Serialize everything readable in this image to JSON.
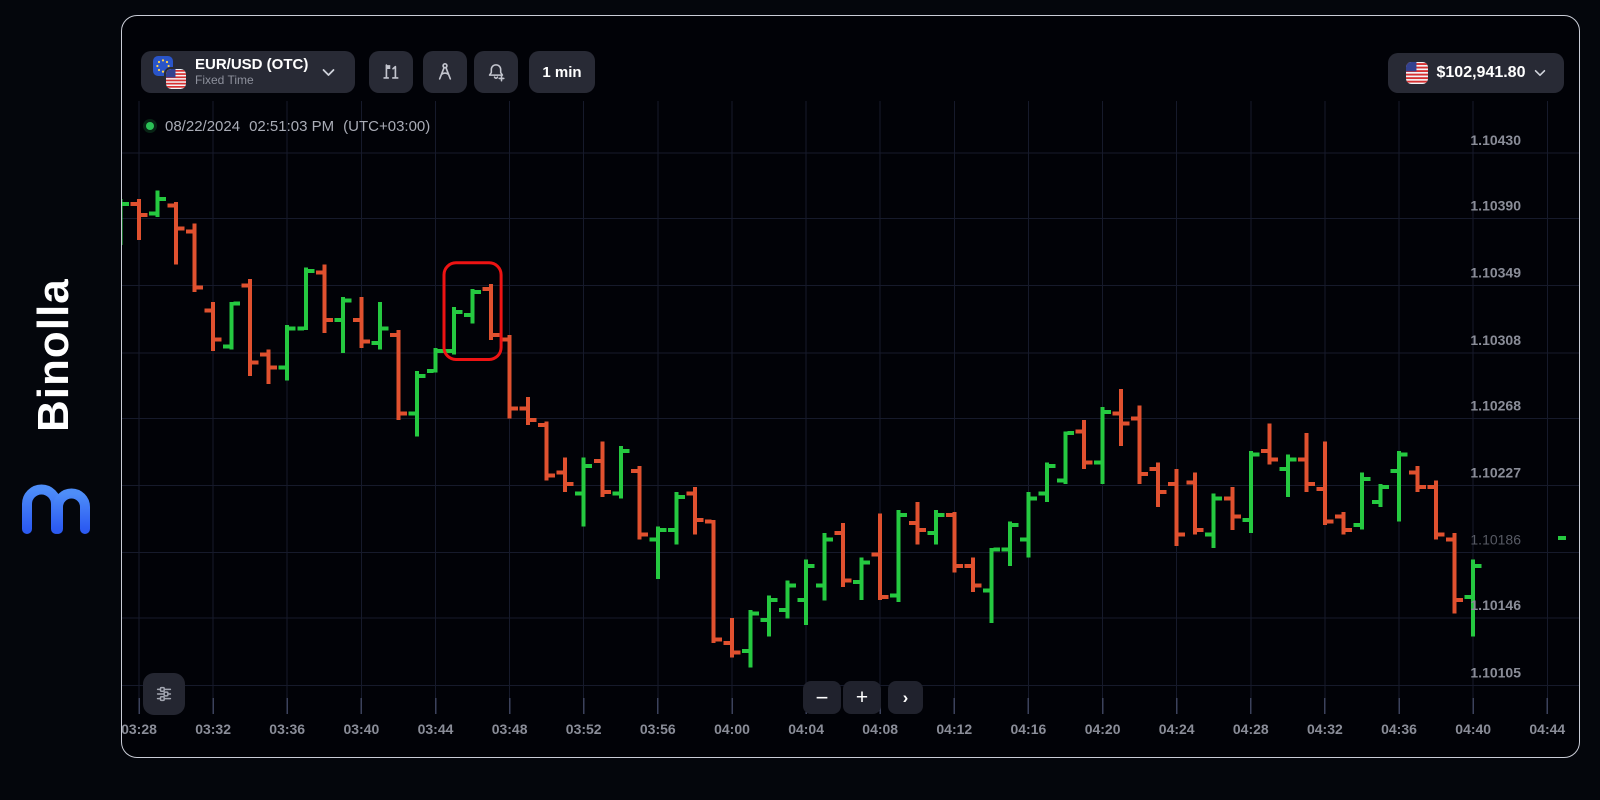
{
  "app": {
    "brand": "Binolla"
  },
  "toolbar": {
    "asset": {
      "name": "EUR/USD (OTC)",
      "type": "Fixed Time",
      "flags": [
        "eu-flag",
        "us-flag"
      ]
    },
    "icons": [
      "trades-icon",
      "drawing-tools-icon",
      "alerts-icon"
    ],
    "timeframe": "1 min",
    "balance": {
      "amount": "$102,941.80",
      "flag": "us-flag"
    }
  },
  "chart": {
    "timestamp": {
      "date": "08/22/2024",
      "time": "02:51:03 PM",
      "tz": "(UTC+03:00)"
    },
    "settings_icon": "sliders-icon"
  },
  "controls": {
    "zoom_out": "−",
    "zoom_in": "+",
    "pan_right": "›"
  },
  "chart_data": {
    "type": "ohlc-bar",
    "symbol": "EUR/USD (OTC)",
    "interval": "1 min",
    "grid": true,
    "y_axis_side": "right",
    "x_ticks": [
      "03:28",
      "03:32",
      "03:36",
      "03:40",
      "03:44",
      "03:48",
      "03:52",
      "03:56",
      "04:00",
      "04:04",
      "04:08",
      "04:12",
      "04:16",
      "04:20",
      "04:24",
      "04:28",
      "04:32",
      "04:36",
      "04:40",
      "04:44"
    ],
    "y_ticks": [
      {
        "label": "1.10430",
        "value": 1.1043,
        "dim": false
      },
      {
        "label": "1.10390",
        "value": 1.1039,
        "dim": false
      },
      {
        "label": "1.10349",
        "value": 1.10349,
        "dim": false
      },
      {
        "label": "1.10308",
        "value": 1.10308,
        "dim": false
      },
      {
        "label": "1.10268",
        "value": 1.10268,
        "dim": false
      },
      {
        "label": "1.10227",
        "value": 1.10227,
        "dim": false
      },
      {
        "label": "1.10186",
        "value": 1.10186,
        "dim": true
      },
      {
        "label": "1.10146",
        "value": 1.10146,
        "dim": false
      },
      {
        "label": "1.10105",
        "value": 1.10105,
        "dim": false
      }
    ],
    "bar_fields": [
      "time",
      "open",
      "high",
      "low",
      "close"
    ],
    "bars": [
      [
        "03:27",
        1.10377,
        1.10402,
        1.10374,
        1.10399
      ],
      [
        "03:28",
        1.10399,
        1.10402,
        1.10377,
        1.10392
      ],
      [
        "03:29",
        1.10393,
        1.10407,
        1.10391,
        1.10402
      ],
      [
        "03:30",
        1.10398,
        1.104,
        1.10362,
        1.10384
      ],
      [
        "03:31",
        1.10382,
        1.10387,
        1.10345,
        1.10348
      ],
      [
        "03:32",
        1.10334,
        1.10339,
        1.10309,
        1.10316
      ],
      [
        "03:33",
        1.10312,
        1.10339,
        1.1031,
        1.10338
      ],
      [
        "03:34",
        1.10349,
        1.10353,
        1.10294,
        1.10302
      ],
      [
        "03:35",
        1.10307,
        1.1031,
        1.10289,
        1.10299
      ],
      [
        "03:36",
        1.10299,
        1.10325,
        1.10291,
        1.10323
      ],
      [
        "03:37",
        1.10323,
        1.1036,
        1.10322,
        1.10358
      ],
      [
        "03:38",
        1.10357,
        1.10362,
        1.1032,
        1.10328
      ],
      [
        "03:39",
        1.10328,
        1.10342,
        1.10308,
        1.1034
      ],
      [
        "03:40",
        1.10328,
        1.10342,
        1.10311,
        1.10315
      ],
      [
        "03:41",
        1.10314,
        1.10339,
        1.1031,
        1.10323
      ],
      [
        "03:42",
        1.10319,
        1.10322,
        1.10267,
        1.10271
      ],
      [
        "03:43",
        1.10271,
        1.10297,
        1.10257,
        1.10294
      ],
      [
        "03:44",
        1.10297,
        1.10311,
        1.10296,
        1.10309
      ],
      [
        "03:45",
        1.10309,
        1.10336,
        1.10307,
        1.10333
      ],
      [
        "03:46",
        1.10331,
        1.10347,
        1.10326,
        1.10345
      ],
      [
        "03:47",
        1.10347,
        1.1035,
        1.10316,
        1.10319
      ],
      [
        "03:48",
        1.10316,
        1.10319,
        1.10268,
        1.10274
      ],
      [
        "03:49",
        1.10274,
        1.10281,
        1.10264,
        1.10267
      ],
      [
        "03:50",
        1.10264,
        1.10266,
        1.1023,
        1.10233
      ],
      [
        "03:51",
        1.10235,
        1.10244,
        1.10223,
        1.10228
      ],
      [
        "03:52",
        1.10222,
        1.10244,
        1.10202,
        1.10239
      ],
      [
        "03:53",
        1.10242,
        1.10254,
        1.1022,
        1.10223
      ],
      [
        "03:54",
        1.10222,
        1.10251,
        1.10219,
        1.10248
      ],
      [
        "03:55",
        1.10236,
        1.10239,
        1.10194,
        1.10197
      ],
      [
        "03:56",
        1.10194,
        1.10202,
        1.1017,
        1.102
      ],
      [
        "03:57",
        1.102,
        1.10223,
        1.10191,
        1.1022
      ],
      [
        "03:58",
        1.10222,
        1.10226,
        1.10197,
        1.10206
      ],
      [
        "03:59",
        1.10205,
        1.10206,
        1.10131,
        1.10133
      ],
      [
        "04:00",
        1.10131,
        1.10146,
        1.10122,
        1.10125
      ],
      [
        "04:01",
        1.10126,
        1.10151,
        1.10116,
        1.10149
      ],
      [
        "04:02",
        1.10145,
        1.1016,
        1.10135,
        1.10157
      ],
      [
        "04:03",
        1.10151,
        1.10169,
        1.10146,
        1.10166
      ],
      [
        "04:04",
        1.10157,
        1.10182,
        1.10142,
        1.10178
      ],
      [
        "04:05",
        1.10166,
        1.10198,
        1.10157,
        1.10194
      ],
      [
        "04:06",
        1.10198,
        1.10204,
        1.10165,
        1.10169
      ],
      [
        "04:07",
        1.10168,
        1.10183,
        1.10157,
        1.1018
      ],
      [
        "04:08",
        1.10185,
        1.1021,
        1.10157,
        1.10159
      ],
      [
        "04:09",
        1.1016,
        1.10212,
        1.10156,
        1.10209
      ],
      [
        "04:10",
        1.10204,
        1.10217,
        1.10191,
        1.102
      ],
      [
        "04:11",
        1.10198,
        1.10212,
        1.10191,
        1.10209
      ],
      [
        "04:12",
        1.10209,
        1.10211,
        1.10174,
        1.10178
      ],
      [
        "04:13",
        1.10178,
        1.10183,
        1.10162,
        1.10166
      ],
      [
        "04:14",
        1.10163,
        1.10189,
        1.10143,
        1.10188
      ],
      [
        "04:15",
        1.10188,
        1.10205,
        1.10178,
        1.10203
      ],
      [
        "04:16",
        1.10194,
        1.10223,
        1.10183,
        1.10219
      ],
      [
        "04:17",
        1.10222,
        1.10241,
        1.10217,
        1.10239
      ],
      [
        "04:18",
        1.1023,
        1.1026,
        1.10228,
        1.10259
      ],
      [
        "04:19",
        1.1026,
        1.10267,
        1.10237,
        1.10241
      ],
      [
        "04:20",
        1.10241,
        1.10275,
        1.10228,
        1.10272
      ],
      [
        "04:21",
        1.10271,
        1.10286,
        1.10251,
        1.10265
      ],
      [
        "04:22",
        1.10268,
        1.10276,
        1.10228,
        1.10234
      ],
      [
        "04:23",
        1.10237,
        1.10241,
        1.10214,
        1.10223
      ],
      [
        "04:24",
        1.10228,
        1.10237,
        1.1019,
        1.10197
      ],
      [
        "04:25",
        1.10229,
        1.10235,
        1.10197,
        1.102
      ],
      [
        "04:26",
        1.10197,
        1.10222,
        1.10189,
        1.10219
      ],
      [
        "04:27",
        1.10219,
        1.10226,
        1.102,
        1.10208
      ],
      [
        "04:28",
        1.10206,
        1.10248,
        1.10198,
        1.10246
      ],
      [
        "04:29",
        1.10248,
        1.10265,
        1.1024,
        1.10243
      ],
      [
        "04:30",
        1.10237,
        1.10246,
        1.1022,
        1.10243
      ],
      [
        "04:31",
        1.10243,
        1.10259,
        1.10223,
        1.10228
      ],
      [
        "04:32",
        1.10225,
        1.10254,
        1.10203,
        1.10205
      ],
      [
        "04:33",
        1.10208,
        1.10211,
        1.10197,
        1.102
      ],
      [
        "04:34",
        1.10203,
        1.10235,
        1.102,
        1.10231
      ],
      [
        "04:35",
        1.10217,
        1.10228,
        1.10214,
        1.10226
      ],
      [
        "04:36",
        1.10236,
        1.10248,
        1.10205,
        1.10246
      ],
      [
        "04:37",
        1.10235,
        1.10239,
        1.10223,
        1.10226
      ],
      [
        "04:38",
        1.10226,
        1.1023,
        1.10194,
        1.10197
      ],
      [
        "04:39",
        1.10194,
        1.10198,
        1.10149,
        1.10157
      ],
      [
        "04:40",
        1.10159,
        1.10182,
        1.10135,
        1.10178
      ]
    ],
    "annotation": {
      "type": "rect-highlight",
      "from": "03:45",
      "to": "03:47",
      "price_top": 1.10363,
      "price_bottom": 1.10304,
      "color": "#ee1313"
    },
    "current_price_marker": {
      "price": 1.10195,
      "color": "#25c940"
    },
    "colors": {
      "up": "#25c940",
      "down": "#e0512f",
      "grid": "#161a2b",
      "grid_tick": "#3c425c",
      "axis_text": "#8a8d98",
      "axis_text_dim": "#575a64"
    }
  }
}
